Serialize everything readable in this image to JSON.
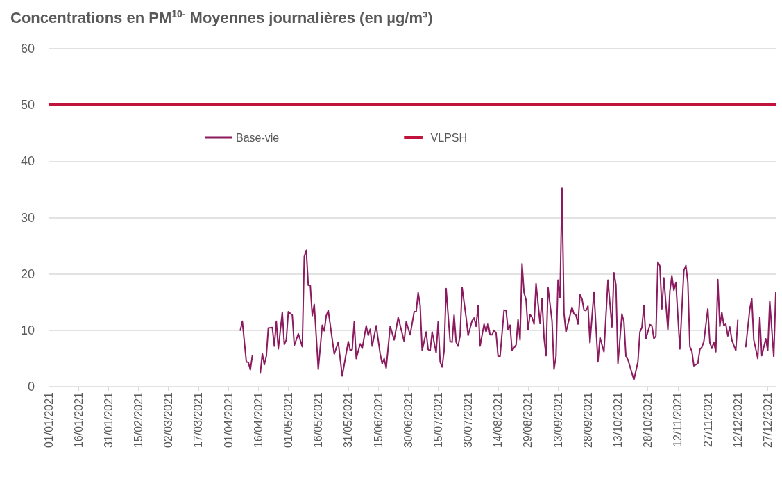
{
  "chart_data": {
    "type": "line",
    "title": "Concentrations en PM$^{10-}$ Moyennes journalières (en µg/m³)",
    "x": [
      "2021-04-07",
      "2021-04-08",
      "2021-04-10",
      "2021-04-11",
      "2021-04-12",
      "2021-04-13",
      "2021-04-14",
      "2021-04-17",
      "2021-04-18",
      "2021-04-19",
      "2021-04-20",
      "2021-04-21",
      "2021-04-23",
      "2021-04-24",
      "2021-04-25",
      "2021-04-26",
      "2021-04-28",
      "2021-04-29",
      "2021-04-30",
      "2021-05-01",
      "2021-05-03",
      "2021-05-04",
      "2021-05-06",
      "2021-05-08",
      "2021-05-09",
      "2021-05-10",
      "2021-05-11",
      "2021-05-12",
      "2021-05-13",
      "2021-05-14",
      "2021-05-16",
      "2021-05-18",
      "2021-05-19",
      "2021-05-20",
      "2021-05-21",
      "2021-05-24",
      "2021-05-26",
      "2021-05-28",
      "2021-05-31",
      "2021-06-01",
      "2021-06-02",
      "2021-06-03",
      "2021-06-04",
      "2021-06-06",
      "2021-06-07",
      "2021-06-09",
      "2021-06-10",
      "2021-06-11",
      "2021-06-12",
      "2021-06-14",
      "2021-06-16",
      "2021-06-17",
      "2021-06-18",
      "2021-06-19",
      "2021-06-21",
      "2021-06-23",
      "2021-06-25",
      "2021-06-28",
      "2021-06-29",
      "2021-07-01",
      "2021-07-03",
      "2021-07-04",
      "2021-07-05",
      "2021-07-06",
      "2021-07-07",
      "2021-07-09",
      "2021-07-10",
      "2021-07-11",
      "2021-07-12",
      "2021-07-14",
      "2021-07-15",
      "2021-07-16",
      "2021-07-17",
      "2021-07-18",
      "2021-07-19",
      "2021-07-21",
      "2021-07-22",
      "2021-07-23",
      "2021-07-24",
      "2021-07-25",
      "2021-07-26",
      "2021-07-27",
      "2021-07-29",
      "2021-07-30",
      "2021-08-01",
      "2021-08-02",
      "2021-08-03",
      "2021-08-04",
      "2021-08-05",
      "2021-08-07",
      "2021-08-08",
      "2021-08-09",
      "2021-08-10",
      "2021-08-11",
      "2021-08-12",
      "2021-08-13",
      "2021-08-14",
      "2021-08-15",
      "2021-08-17",
      "2021-08-18",
      "2021-08-19",
      "2021-08-20",
      "2021-08-21",
      "2021-08-23",
      "2021-08-24",
      "2021-08-25",
      "2021-08-26",
      "2021-08-27",
      "2021-08-28",
      "2021-08-29",
      "2021-08-30",
      "2021-08-31",
      "2021-09-01",
      "2021-09-02",
      "2021-09-03",
      "2021-09-04",
      "2021-09-05",
      "2021-09-06",
      "2021-09-07",
      "2021-09-08",
      "2021-09-10",
      "2021-09-11",
      "2021-09-12",
      "2021-09-13",
      "2021-09-14",
      "2021-09-15",
      "2021-09-16",
      "2021-09-17",
      "2021-09-20",
      "2021-09-21",
      "2021-09-22",
      "2021-09-23",
      "2021-09-24",
      "2021-09-25",
      "2021-09-26",
      "2021-09-27",
      "2021-09-28",
      "2021-09-29",
      "2021-10-01",
      "2021-10-03",
      "2021-10-04",
      "2021-10-06",
      "2021-10-08",
      "2021-10-10",
      "2021-10-11",
      "2021-10-12",
      "2021-10-13",
      "2021-10-15",
      "2021-10-16",
      "2021-10-17",
      "2021-10-18",
      "2021-10-21",
      "2021-10-23",
      "2021-10-24",
      "2021-10-25",
      "2021-10-26",
      "2021-10-27",
      "2021-10-29",
      "2021-10-30",
      "2021-10-31",
      "2021-11-01",
      "2021-11-02",
      "2021-11-03",
      "2021-11-04",
      "2021-11-05",
      "2021-11-07",
      "2021-11-08",
      "2021-11-09",
      "2021-11-10",
      "2021-11-11",
      "2021-11-13",
      "2021-11-15",
      "2021-11-16",
      "2021-11-17",
      "2021-11-18",
      "2021-11-19",
      "2021-11-20",
      "2021-11-22",
      "2021-11-23",
      "2021-11-24",
      "2021-11-25",
      "2021-11-27",
      "2021-11-28",
      "2021-11-29",
      "2021-11-30",
      "2021-12-01",
      "2021-12-02",
      "2021-12-03",
      "2021-12-04",
      "2021-12-05",
      "2021-12-06",
      "2021-12-07",
      "2021-12-08",
      "2021-12-09",
      "2021-12-11",
      "2021-12-12",
      "2021-12-14",
      "2021-12-16",
      "2021-12-18",
      "2021-12-19",
      "2021-12-20",
      "2021-12-22",
      "2021-12-23",
      "2021-12-24",
      "2021-12-26",
      "2021-12-27",
      "2021-12-28",
      "2021-12-30",
      "2021-12-31"
    ],
    "series": [
      {
        "name": "Base-vie",
        "color": "#8c1a5e",
        "values": [
          10.0,
          11.6,
          4.4,
          4.3,
          3.0,
          5.5,
          null,
          2.4,
          5.9,
          3.9,
          5.4,
          10.4,
          10.5,
          7.2,
          11.6,
          6.7,
          13.2,
          7.5,
          8.3,
          13.3,
          12.7,
          7.3,
          9.4,
          7.1,
          23.1,
          24.2,
          18.0,
          18.0,
          12.6,
          14.6,
          3.1,
          10.9,
          9.9,
          12.6,
          13.5,
          5.8,
          7.9,
          1.9,
          8.0,
          6.4,
          6.6,
          11.5,
          5.0,
          7.6,
          6.8,
          10.8,
          9.1,
          10.2,
          7.2,
          10.8,
          5.8,
          4.1,
          5.0,
          3.3,
          10.7,
          8.3,
          12.3,
          8.0,
          11.5,
          9.2,
          13.3,
          13.3,
          16.7,
          14.4,
          6.4,
          9.7,
          6.6,
          6.4,
          9.7,
          6.0,
          11.5,
          4.4,
          3.5,
          6.4,
          17.4,
          8.0,
          7.9,
          12.7,
          7.9,
          7.2,
          9.1,
          17.6,
          12.3,
          9.1,
          11.7,
          12.2,
          10.7,
          14.4,
          7.2,
          11.1,
          9.7,
          11.2,
          9.2,
          9.2,
          10.0,
          9.5,
          5.4,
          5.4,
          13.6,
          13.5,
          10.1,
          10.9,
          6.4,
          7.4,
          11.9,
          8.3,
          21.8,
          16.7,
          15.4,
          10.1,
          12.8,
          12.3,
          11.1,
          18.3,
          14.8,
          11.2,
          15.6,
          8.7,
          5.5,
          17.6,
          11.7,
          3.1,
          5.4,
          18.9,
          15.8,
          35.2,
          13.0,
          9.7,
          14.1,
          12.9,
          12.7,
          11.1,
          16.3,
          15.6,
          13.6,
          13.5,
          14.3,
          7.8,
          16.8,
          4.4,
          8.7,
          6.2,
          18.9,
          10.6,
          20.2,
          18.1,
          4.1,
          12.9,
          11.5,
          5.4,
          4.8,
          1.2,
          4.4,
          9.7,
          10.5,
          14.4,
          8.5,
          11.0,
          10.8,
          8.5,
          9.0,
          22.1,
          21.4,
          13.8,
          19.3,
          10.1,
          16.9,
          19.7,
          17.1,
          18.5,
          6.7,
          20.6,
          21.5,
          18.5,
          7.1,
          6.3,
          3.7,
          4.1,
          6.6,
          7.0,
          8.0,
          13.8,
          7.8,
          6.8,
          7.9,
          6.2,
          19.0,
          10.7,
          13.2,
          10.9,
          11.1,
          9.0,
          10.6,
          8.3,
          6.4,
          11.8,
          null,
          7.1,
          13.8,
          15.6,
          8.3,
          5.0,
          12.3,
          5.5,
          8.5,
          6.4,
          15.2,
          5.3,
          16.7
        ]
      }
    ],
    "ref_lines": [
      {
        "axis": "y",
        "value": 50,
        "label": "VLPSH",
        "color": "#c0143c"
      }
    ],
    "xlim": [
      "2021-01-01",
      "2021-12-31"
    ],
    "xticks": [
      {
        "value": "2021-01-01",
        "label": "01/01/2021"
      },
      {
        "value": "2021-01-16",
        "label": "16/01/2021"
      },
      {
        "value": "2021-01-31",
        "label": "31/01/2021"
      },
      {
        "value": "2021-02-15",
        "label": "15/02/2021"
      },
      {
        "value": "2021-03-02",
        "label": "02/03/2021"
      },
      {
        "value": "2021-03-17",
        "label": "17/03/2021"
      },
      {
        "value": "2021-04-01",
        "label": "01/04/2021"
      },
      {
        "value": "2021-04-16",
        "label": "16/04/2021"
      },
      {
        "value": "2021-05-01",
        "label": "01/05/2021"
      },
      {
        "value": "2021-05-16",
        "label": "16/05/2021"
      },
      {
        "value": "2021-05-31",
        "label": "31/05/2021"
      },
      {
        "value": "2021-06-15",
        "label": "15/06/2021"
      },
      {
        "value": "2021-06-30",
        "label": "30/06/2021"
      },
      {
        "value": "2021-07-15",
        "label": "15/07/2021"
      },
      {
        "value": "2021-07-30",
        "label": "30/07/2021"
      },
      {
        "value": "2021-08-14",
        "label": "14/08/2021"
      },
      {
        "value": "2021-08-29",
        "label": "29/08/2021"
      },
      {
        "value": "2021-09-13",
        "label": "13/09/2021"
      },
      {
        "value": "2021-09-28",
        "label": "28/09/2021"
      },
      {
        "value": "2021-10-13",
        "label": "13/10/2021"
      },
      {
        "value": "2021-10-28",
        "label": "28/10/2021"
      },
      {
        "value": "2021-11-12",
        "label": "12/11/2021"
      },
      {
        "value": "2021-11-27",
        "label": "27/11/2021"
      },
      {
        "value": "2021-12-12",
        "label": "12/12/2021"
      },
      {
        "value": "2021-12-27",
        "label": "27/12/2021"
      }
    ],
    "ylim": [
      0,
      60
    ],
    "yticks": [
      0,
      10,
      20,
      30,
      40,
      50,
      60
    ],
    "grid": "y",
    "legend": "top",
    "marker": "none",
    "line_style": "solid"
  }
}
